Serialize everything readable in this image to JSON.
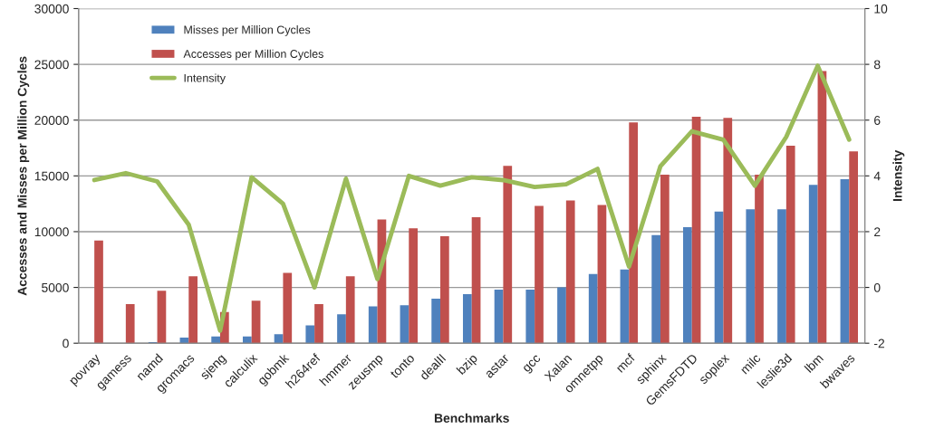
{
  "chart_data": {
    "type": "bar",
    "xlabel": "Benchmarks",
    "ylabel": "Accesses and Misses per Million Cycles",
    "y2label": "Intensity",
    "categories": [
      "povray",
      "gamess",
      "namd",
      "gromacs",
      "sjeng",
      "calculix",
      "gobmk",
      "h264ref",
      "hmmer",
      "zeusmp",
      "tonto",
      "dealII",
      "bzip",
      "astar",
      "gcc",
      "Xalan",
      "omnetpp",
      "mcf",
      "sphinx",
      "GemsFDTD",
      "soplex",
      "milc",
      "leslie3d",
      "lbm",
      "bwaves"
    ],
    "series": [
      {
        "name": "Misses per Million Cycles",
        "color": "#4f81bd",
        "values": [
          0,
          0,
          100,
          500,
          600,
          600,
          800,
          1600,
          2600,
          3300,
          3400,
          4000,
          4400,
          4800,
          4800,
          5000,
          6200,
          6600,
          9700,
          10400,
          11800,
          12000,
          12000,
          14200,
          14700
        ]
      },
      {
        "name": "Accesses per Million Cycles",
        "color": "#c0504d",
        "values": [
          9200,
          3500,
          4700,
          6000,
          2800,
          3800,
          6300,
          3500,
          6000,
          11100,
          10300,
          9600,
          11300,
          15900,
          12300,
          12800,
          12400,
          19800,
          15100,
          20300,
          20200,
          15100,
          17700,
          24400,
          17200
        ]
      },
      {
        "name": "Intensity",
        "type": "line",
        "axis": "y2",
        "color": "#9bbb59",
        "values": [
          3.85,
          4.1,
          3.8,
          2.25,
          -1.55,
          3.95,
          3.0,
          0.0,
          3.9,
          0.3,
          4.0,
          3.65,
          3.95,
          3.85,
          3.6,
          3.7,
          4.25,
          0.75,
          4.35,
          5.6,
          5.3,
          3.65,
          5.4,
          7.95,
          5.3
        ]
      }
    ],
    "ylim": [
      0,
      30000
    ],
    "yticks": [
      0,
      5000,
      10000,
      15000,
      20000,
      25000,
      30000
    ],
    "y2lim": [
      -2,
      10
    ],
    "y2ticks": [
      -2,
      0,
      2,
      4,
      6,
      8,
      10
    ],
    "grid": "y",
    "legend": "top left"
  }
}
